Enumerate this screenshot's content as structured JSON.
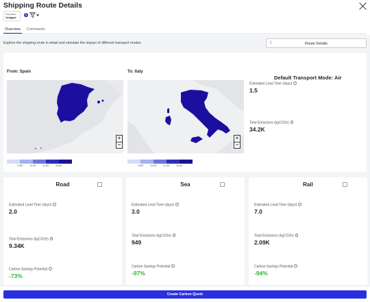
{
  "header": {
    "title": "Shipping Route Details",
    "badge_line1": "Standard",
    "badge_line2": "Voidgate",
    "info_count": "1"
  },
  "tabs": [
    {
      "label": "Overview",
      "active": true
    },
    {
      "label": "Comments",
      "active": false
    }
  ],
  "description": "Explore the shipping route in detail and simulate the impact of different transport modes.",
  "route_button": {
    "label": "Route Details",
    "icon": "map-icon"
  },
  "route": {
    "from_label": "From: Spain",
    "to_label": "To: Italy",
    "legend_ticks": [
      "7.00K",
      "14.0K",
      "21.0K",
      "28.0K"
    ],
    "legend_colors": [
      "#d6dcf6",
      "#a6b2ee",
      "#6b76e0",
      "#2a2fb8",
      "#1a1490"
    ],
    "country_color": "#1c0fa0"
  },
  "default_mode": {
    "title": "Default Transport Mode: Air",
    "lead_time_label": "Estimated Lead Time (days)",
    "lead_time_value": "1.5",
    "emissions_label": "Total Emissions (kgCO2e)",
    "emissions_value": "34.2K"
  },
  "modes": [
    {
      "name": "Road",
      "lead_time_label": "Estimated Lead Time (days)",
      "lead_time": "2.0",
      "emissions_label": "Total Emissions (kgCO2e)",
      "emissions": "9.34K",
      "savings_label": "Carbon Savings Potential",
      "savings": "-73%"
    },
    {
      "name": "Sea",
      "lead_time_label": "Estimated Lead Time (days)",
      "lead_time": "3.0",
      "emissions_label": "Total Emissions (kgCO2e)",
      "emissions": "949",
      "savings_label": "Carbon Savings Potential",
      "savings": "-97%"
    },
    {
      "name": "Rail",
      "lead_time_label": "Estimated Lead Time (days)",
      "lead_time": "7.0",
      "emissions_label": "Total Emissions (kgCO2e)",
      "emissions": "2.09K",
      "savings_label": "Carbon Savings Potential",
      "savings": "-94%"
    }
  ],
  "cta_label": "Create Carbon Quote",
  "colors": {
    "accent": "#2a2fe0",
    "savings": "#2fb52f",
    "background": "#f3f4f6"
  }
}
